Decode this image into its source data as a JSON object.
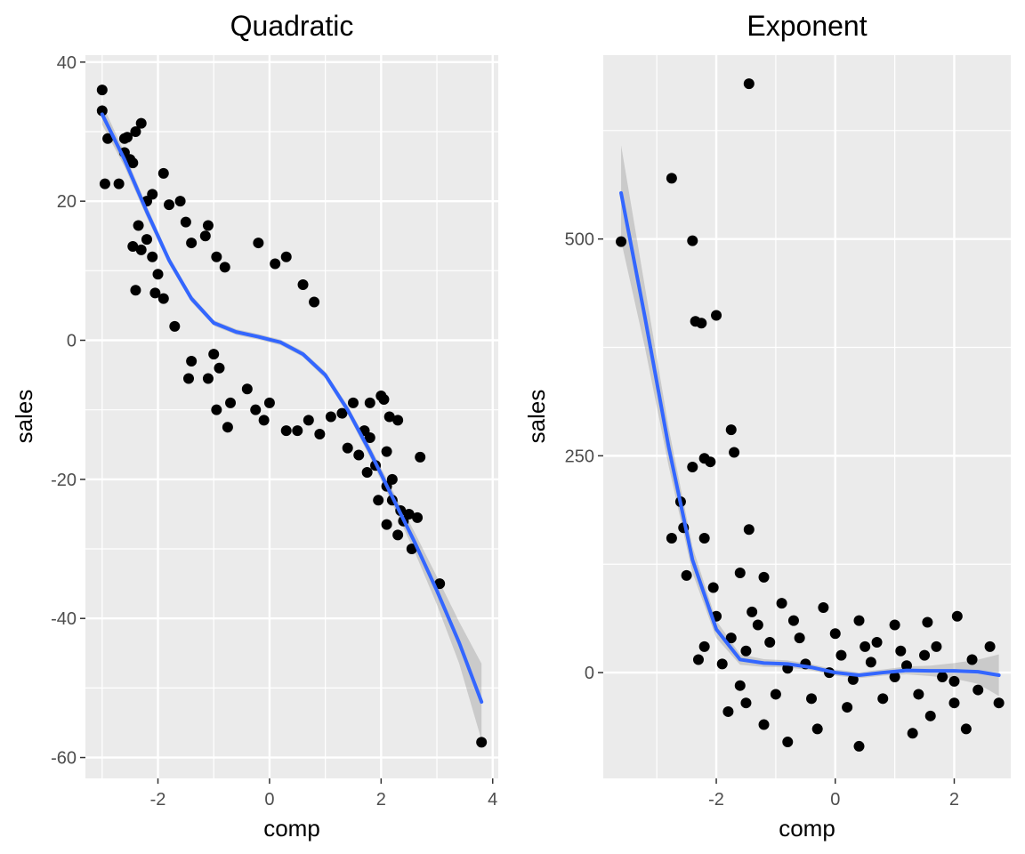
{
  "chart_data": [
    {
      "type": "scatter",
      "title": "Quadratic",
      "xlabel": "comp",
      "ylabel": "sales",
      "xlim": [
        -3.3,
        4.1
      ],
      "ylim": [
        -63,
        41
      ],
      "x_ticks": [
        -2,
        0,
        2,
        4
      ],
      "x_tick_labels": [
        "-2",
        "0",
        "2",
        "4"
      ],
      "y_ticks": [
        -60,
        -40,
        -20,
        0,
        20,
        40
      ],
      "y_tick_labels": [
        "-60",
        "-40",
        "-20",
        "0",
        "20",
        "40"
      ],
      "grid": true,
      "background": "#ebebeb",
      "point_color": "#000000",
      "smooth_color": "#3366ff",
      "band_color": "#999999",
      "smooth": {
        "x": [
          -3.0,
          -2.6,
          -2.2,
          -1.8,
          -1.4,
          -1.0,
          -0.6,
          -0.2,
          0.2,
          0.6,
          1.0,
          1.4,
          1.8,
          2.2,
          2.6,
          3.0,
          3.4,
          3.8
        ],
        "y": [
          32.5,
          26.0,
          18.5,
          11.5,
          6.0,
          2.5,
          1.2,
          0.5,
          -0.3,
          -2.0,
          -5.0,
          -10.0,
          -16.0,
          -22.5,
          -29.0,
          -36.0,
          -43.5,
          -52.0
        ],
        "se": [
          1.5,
          1.0,
          0.8,
          0.6,
          0.5,
          0.4,
          0.4,
          0.4,
          0.4,
          0.4,
          0.5,
          0.6,
          0.8,
          1.0,
          1.4,
          2.0,
          3.0,
          5.5
        ]
      },
      "points": [
        [
          -3.0,
          36.0
        ],
        [
          -3.0,
          33.0
        ],
        [
          -2.9,
          29.0
        ],
        [
          -2.95,
          22.5
        ],
        [
          -2.7,
          22.5
        ],
        [
          -2.6,
          29.0
        ],
        [
          -2.55,
          29.2
        ],
        [
          -2.4,
          30.0
        ],
        [
          -2.3,
          31.2
        ],
        [
          -2.5,
          26.0
        ],
        [
          -2.45,
          25.5
        ],
        [
          -2.6,
          27.0
        ],
        [
          -2.2,
          20.0
        ],
        [
          -2.1,
          21.0
        ],
        [
          -1.9,
          24.0
        ],
        [
          -1.8,
          19.5
        ],
        [
          -1.6,
          20.0
        ],
        [
          -2.35,
          16.5
        ],
        [
          -2.2,
          14.5
        ],
        [
          -2.1,
          12.0
        ],
        [
          -2.45,
          13.5
        ],
        [
          -2.3,
          13.0
        ],
        [
          -2.4,
          7.2
        ],
        [
          -2.0,
          9.5
        ],
        [
          -2.05,
          6.8
        ],
        [
          -1.9,
          6.0
        ],
        [
          -1.5,
          17.0
        ],
        [
          -1.4,
          14.0
        ],
        [
          -1.15,
          15.0
        ],
        [
          -1.1,
          16.5
        ],
        [
          -0.95,
          12.0
        ],
        [
          -0.8,
          10.5
        ],
        [
          -1.7,
          2.0
        ],
        [
          -1.4,
          -3.0
        ],
        [
          -1.45,
          -5.5
        ],
        [
          -1.0,
          -2.0
        ],
        [
          -0.9,
          -4.0
        ],
        [
          -0.95,
          -10.0
        ],
        [
          -0.7,
          -9.0
        ],
        [
          -0.75,
          -12.5
        ],
        [
          -1.1,
          -5.5
        ],
        [
          -0.4,
          -7.0
        ],
        [
          -0.2,
          14.0
        ],
        [
          0.1,
          11.0
        ],
        [
          0.3,
          12.0
        ],
        [
          0.6,
          8.0
        ],
        [
          0.8,
          5.5
        ],
        [
          -0.25,
          -10.0
        ],
        [
          -0.1,
          -11.5
        ],
        [
          0.0,
          -9.0
        ],
        [
          0.3,
          -13.0
        ],
        [
          0.5,
          -13.0
        ],
        [
          0.7,
          -11.5
        ],
        [
          0.9,
          -13.5
        ],
        [
          1.1,
          -11.0
        ],
        [
          1.3,
          -10.5
        ],
        [
          1.5,
          -9.0
        ],
        [
          1.8,
          -9.0
        ],
        [
          2.0,
          -8.0
        ],
        [
          2.05,
          -8.5
        ],
        [
          1.4,
          -15.5
        ],
        [
          1.6,
          -16.5
        ],
        [
          1.75,
          -19.0
        ],
        [
          1.9,
          -18.0
        ],
        [
          2.1,
          -16.0
        ],
        [
          2.1,
          -21.0
        ],
        [
          2.2,
          -23.0
        ],
        [
          2.35,
          -24.5
        ],
        [
          2.4,
          -26.0
        ],
        [
          2.5,
          -25.0
        ],
        [
          2.65,
          -25.5
        ],
        [
          2.7,
          -16.8
        ],
        [
          2.55,
          -30.0
        ],
        [
          2.3,
          -28.0
        ],
        [
          2.1,
          -26.5
        ],
        [
          1.95,
          -23.0
        ],
        [
          2.2,
          -20.0
        ],
        [
          2.3,
          -11.5
        ],
        [
          2.15,
          -11.0
        ],
        [
          1.7,
          -13.0
        ],
        [
          1.8,
          -14.0
        ],
        [
          3.05,
          -35.0
        ],
        [
          3.8,
          -57.8
        ]
      ]
    },
    {
      "type": "scatter",
      "title": "Exponent",
      "xlabel": "comp",
      "ylabel": "sales",
      "xlim": [
        -3.9,
        2.95
      ],
      "ylim": [
        -122,
        712
      ],
      "x_ticks": [
        -2,
        0,
        2
      ],
      "x_tick_labels": [
        "-2",
        "0",
        "2"
      ],
      "y_ticks": [
        0,
        250,
        500
      ],
      "y_tick_labels": [
        "0",
        "250",
        "500"
      ],
      "grid": true,
      "background": "#ebebeb",
      "point_color": "#000000",
      "smooth_color": "#3366ff",
      "band_color": "#999999",
      "smooth": {
        "x": [
          -3.6,
          -3.2,
          -2.8,
          -2.4,
          -2.0,
          -1.6,
          -1.2,
          -0.8,
          -0.4,
          0.0,
          0.4,
          0.8,
          1.2,
          1.6,
          2.0,
          2.4,
          2.75
        ],
        "y": [
          553.0,
          410.0,
          260.0,
          130.0,
          50.0,
          15.0,
          11.0,
          10.0,
          6.0,
          0.0,
          -3.0,
          0.0,
          2.5,
          2.0,
          2.0,
          1.0,
          -3.0
        ],
        "se": [
          55.0,
          35.0,
          22.0,
          15.0,
          10.0,
          6.0,
          4.5,
          4.0,
          3.5,
          3.5,
          3.5,
          3.5,
          4.5,
          6.0,
          9.0,
          14.0,
          24.0
        ]
      },
      "points": [
        [
          -3.6,
          497.0
        ],
        [
          -2.75,
          570.0
        ],
        [
          -1.45,
          679.0
        ],
        [
          -2.4,
          498.0
        ],
        [
          -2.35,
          405.0
        ],
        [
          -2.25,
          403.0
        ],
        [
          -2.0,
          412.0
        ],
        [
          -2.2,
          247.0
        ],
        [
          -2.4,
          237.0
        ],
        [
          -2.1,
          243.0
        ],
        [
          -1.75,
          280.0
        ],
        [
          -1.7,
          254.0
        ],
        [
          -1.45,
          165.0
        ],
        [
          -2.6,
          197.0
        ],
        [
          -2.75,
          155.0
        ],
        [
          -2.55,
          167.0
        ],
        [
          -2.2,
          155.0
        ],
        [
          -2.5,
          112.0
        ],
        [
          -2.05,
          98.0
        ],
        [
          -1.6,
          115.0
        ],
        [
          -1.2,
          110.0
        ],
        [
          -2.3,
          15.0
        ],
        [
          -2.2,
          30.0
        ],
        [
          -2.0,
          65.0
        ],
        [
          -1.9,
          10.0
        ],
        [
          -1.8,
          -45.0
        ],
        [
          -1.5,
          -35.0
        ],
        [
          -1.2,
          -60.0
        ],
        [
          -0.8,
          -80.0
        ],
        [
          -0.3,
          -65.0
        ],
        [
          0.4,
          -85.0
        ],
        [
          1.3,
          -70.0
        ],
        [
          1.6,
          -50.0
        ],
        [
          2.0,
          -35.0
        ],
        [
          2.2,
          -65.0
        ],
        [
          2.75,
          -35.0
        ],
        [
          2.6,
          30.0
        ],
        [
          2.05,
          65.0
        ],
        [
          1.55,
          58.0
        ],
        [
          1.0,
          55.0
        ],
        [
          0.4,
          60.0
        ],
        [
          -0.2,
          75.0
        ],
        [
          -0.9,
          80.0
        ],
        [
          -1.3,
          55.0
        ],
        [
          -1.5,
          25.0
        ],
        [
          -1.1,
          35.0
        ],
        [
          -0.6,
          40.0
        ],
        [
          0.0,
          45.0
        ],
        [
          0.7,
          35.0
        ],
        [
          1.5,
          20.0
        ],
        [
          2.3,
          15.0
        ],
        [
          -1.6,
          -15.0
        ],
        [
          -1.0,
          -25.0
        ],
        [
          -0.4,
          -30.0
        ],
        [
          0.2,
          -40.0
        ],
        [
          0.8,
          -30.0
        ],
        [
          1.4,
          -25.0
        ],
        [
          2.0,
          -10.0
        ],
        [
          -0.8,
          5.0
        ],
        [
          -0.5,
          10.0
        ],
        [
          -0.1,
          0.0
        ],
        [
          0.3,
          -8.0
        ],
        [
          0.6,
          12.0
        ],
        [
          1.0,
          -5.0
        ],
        [
          1.2,
          8.0
        ],
        [
          1.8,
          -5.0
        ],
        [
          -1.4,
          70.0
        ],
        [
          -1.75,
          40.0
        ],
        [
          -0.7,
          60.0
        ],
        [
          0.1,
          20.0
        ],
        [
          0.5,
          30.0
        ],
        [
          1.1,
          25.0
        ],
        [
          1.7,
          30.0
        ],
        [
          2.4,
          -20.0
        ]
      ]
    }
  ]
}
